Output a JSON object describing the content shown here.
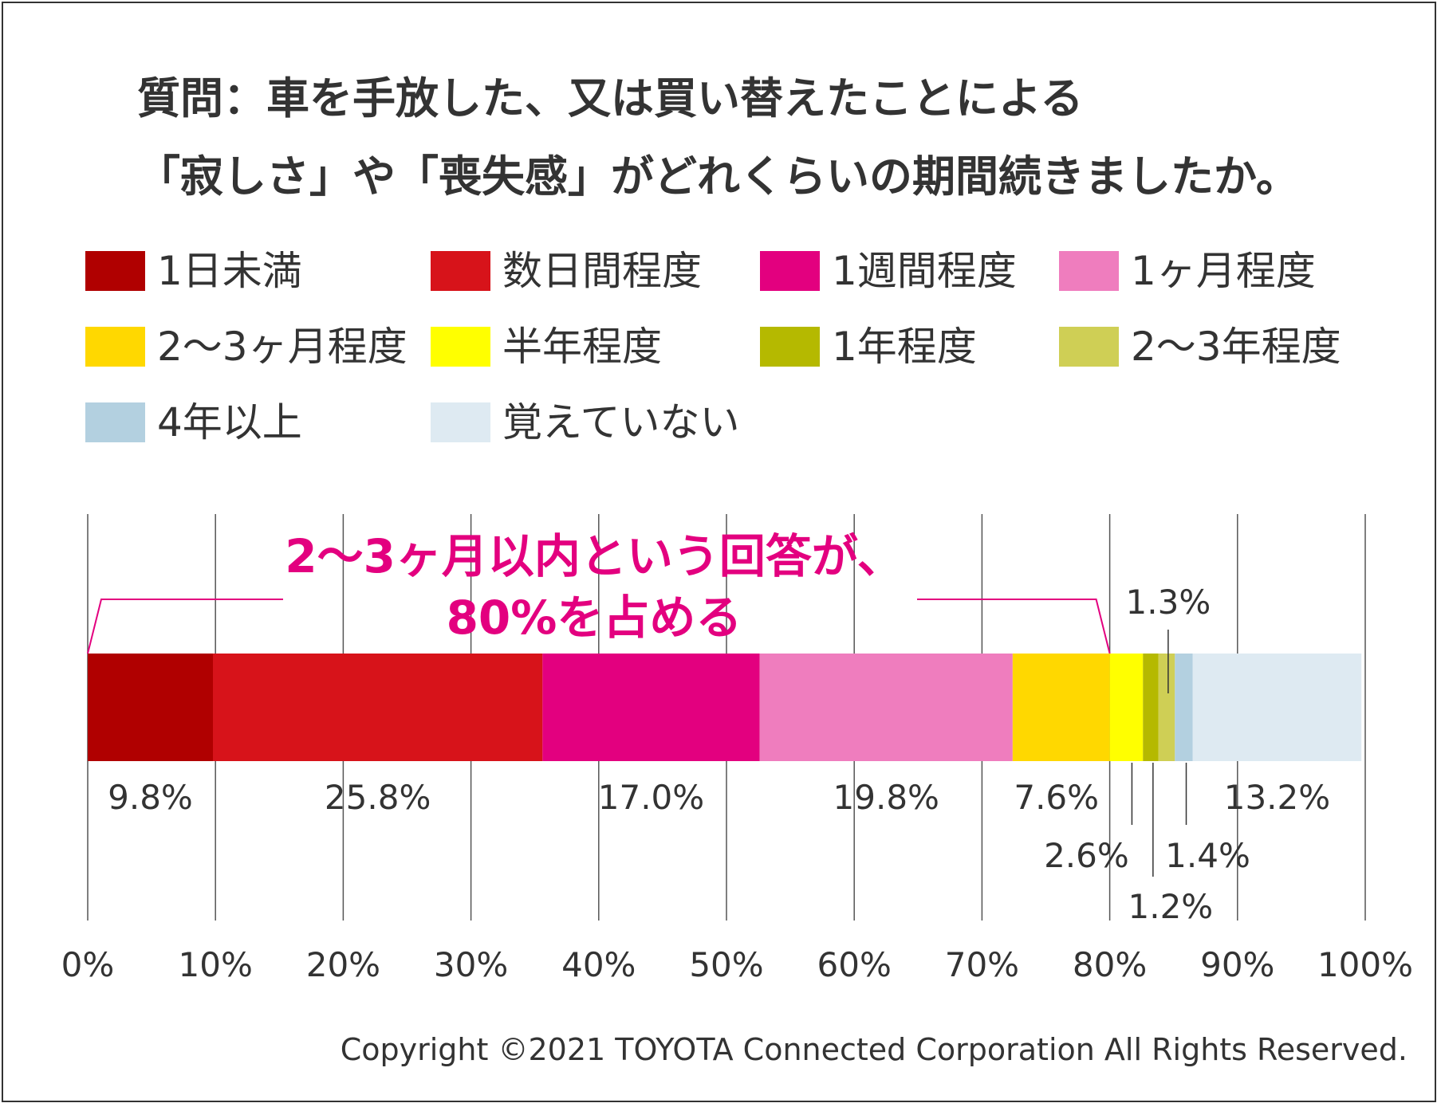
{
  "chart_data": {
    "type": "bar",
    "orientation": "horizontal-stacked",
    "title": [
      "質問：車を手放した、又は買い替えたことによる",
      "「寂しさ」や「喪失感」がどれくらいの期間続きましたか。"
    ],
    "xlim": [
      0,
      100
    ],
    "x_ticks": [
      "0%",
      "10%",
      "20%",
      "30%",
      "40%",
      "50%",
      "60%",
      "70%",
      "80%",
      "90%",
      "100%"
    ],
    "series": [
      {
        "name": "1日未満",
        "value": 9.8,
        "label": "9.8%",
        "color": "#b00000"
      },
      {
        "name": "数日間程度",
        "value": 25.8,
        "label": "25.8%",
        "color": "#d7131a"
      },
      {
        "name": "1週間程度",
        "value": 17.0,
        "label": "17.0%",
        "color": "#e3007f"
      },
      {
        "name": "1ヶ月程度",
        "value": 19.8,
        "label": "19.8%",
        "color": "#ef7dbe"
      },
      {
        "name": "2〜3ヶ月程度",
        "value": 7.6,
        "label": "7.6%",
        "color": "#ffd800"
      },
      {
        "name": "半年程度",
        "value": 2.6,
        "label": "2.6%",
        "color": "#ffff00"
      },
      {
        "name": "1年程度",
        "value": 1.2,
        "label": "1.2%",
        "color": "#b5b900"
      },
      {
        "name": "2〜3年程度",
        "value": 1.3,
        "label": "1.3%",
        "color": "#cfcf55"
      },
      {
        "name": "4年以上",
        "value": 1.4,
        "label": "1.4%",
        "color": "#b3d0e0"
      },
      {
        "name": "覚えていない",
        "value": 13.2,
        "label": "13.2%",
        "color": "#deeaf2"
      }
    ],
    "annotation": {
      "lines": [
        "2〜3ヶ月以内という回答が、",
        "80%を占める"
      ],
      "range": [
        0,
        80
      ],
      "color": "#e3007f"
    },
    "grid": true
  },
  "footer": {
    "copyright": "Copyright ©2021 TOYOTA Connected Corporation All Rights Reserved."
  }
}
